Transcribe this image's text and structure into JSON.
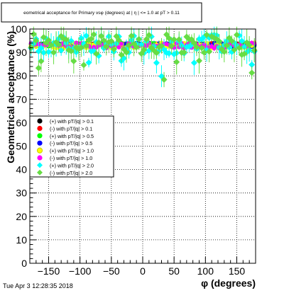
{
  "chart_data": {
    "type": "scatter",
    "title": "eometrical acceptance for Primary vsφ (degrees) at | η | <= 1.0 at pT > 0.11",
    "xlabel": "φ (degrees)",
    "ylabel": "Geometrical acceptance (%)",
    "xlim": [
      -180,
      180
    ],
    "ylim": [
      0,
      100
    ],
    "x_ticks": [
      -150,
      -100,
      -50,
      0,
      50,
      100,
      150
    ],
    "x_tick_labels": [
      "−150",
      "−100",
      "−50",
      "0",
      "50",
      "100",
      "150"
    ],
    "y_ticks": [
      0,
      10,
      20,
      30,
      40,
      50,
      60,
      70,
      80,
      90,
      100
    ],
    "grid": true,
    "legend_position": "middle-left",
    "phi_bin_width": 4,
    "series": [
      {
        "name": "(+) with pT/|q| > 0.1",
        "color": "#000000",
        "mean": 93.5,
        "spread": 0.6,
        "err": 0.3
      },
      {
        "name": "(-) with pT/|q| > 0.1",
        "color": "#ff0000",
        "mean": 93.4,
        "spread": 0.6,
        "err": 0.3
      },
      {
        "name": "(+) with pT/|q| > 0.5",
        "color": "#00ff00",
        "mean": 93.3,
        "spread": 0.8,
        "err": 0.4
      },
      {
        "name": "(-) with pT/|q| > 0.5",
        "color": "#0000ff",
        "mean": 93.2,
        "spread": 0.8,
        "err": 0.4
      },
      {
        "name": "(+) with pT/|q| > 1.0",
        "color": "#ffff00",
        "mean": 93.0,
        "spread": 1.2,
        "err": 0.8
      },
      {
        "name": "(-) with pT/|q| > 1.0",
        "color": "#ff00ff",
        "mean": 92.9,
        "spread": 1.2,
        "err": 0.8
      },
      {
        "name": "(+) with pT/|q| > 2.0",
        "color": "#00ffff",
        "mean": 93.5,
        "spread": 4.0,
        "err": 3.5
      },
      {
        "name": "(-) with pT/|q| > 2.0",
        "color": "#66dd44",
        "mean": 93.3,
        "spread": 4.5,
        "err": 4.0
      }
    ]
  },
  "footer": {
    "date": "Tue Apr  3 12:28:35 2018"
  }
}
